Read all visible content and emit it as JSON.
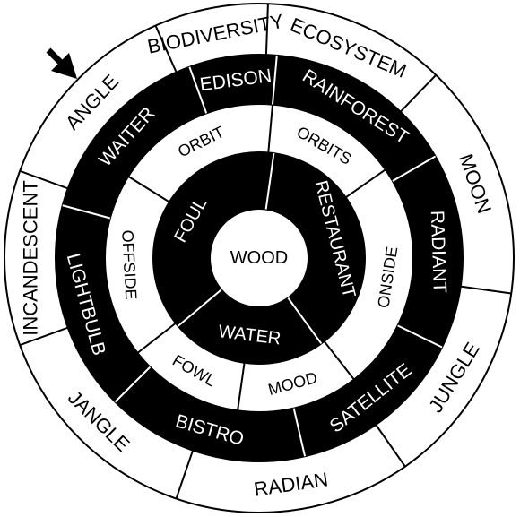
{
  "puzzle": {
    "center_word": "WOOD",
    "rings": [
      {
        "name": "outer",
        "fill": "#ffffff",
        "text_color": "#000000",
        "words": [
          "ECOSYSTEM",
          "MOON",
          "JUNGLE",
          "RADIAN",
          "JANGLE",
          "INCANDESCENT",
          "ANGLE",
          "BIODIVERSITY"
        ]
      },
      {
        "name": "second",
        "fill": "#000000",
        "text_color": "#ffffff",
        "words": [
          "RAINFOREST",
          "RADIANT",
          "SATELLITE",
          "BISTRO",
          "LIGHTBULB",
          "WAITER",
          "EDISON"
        ]
      },
      {
        "name": "third",
        "fill": "#ffffff",
        "text_color": "#000000",
        "words": [
          "ORBITS",
          "ONSIDE",
          "MOOD",
          "FOWL",
          "OFFSIDE",
          "ORBIT"
        ]
      },
      {
        "name": "inner",
        "fill": "#000000",
        "text_color": "#ffffff",
        "words": [
          "RESTAURANT",
          "WATER",
          "FOUL"
        ]
      }
    ],
    "start_marker": "arrow-icon"
  }
}
